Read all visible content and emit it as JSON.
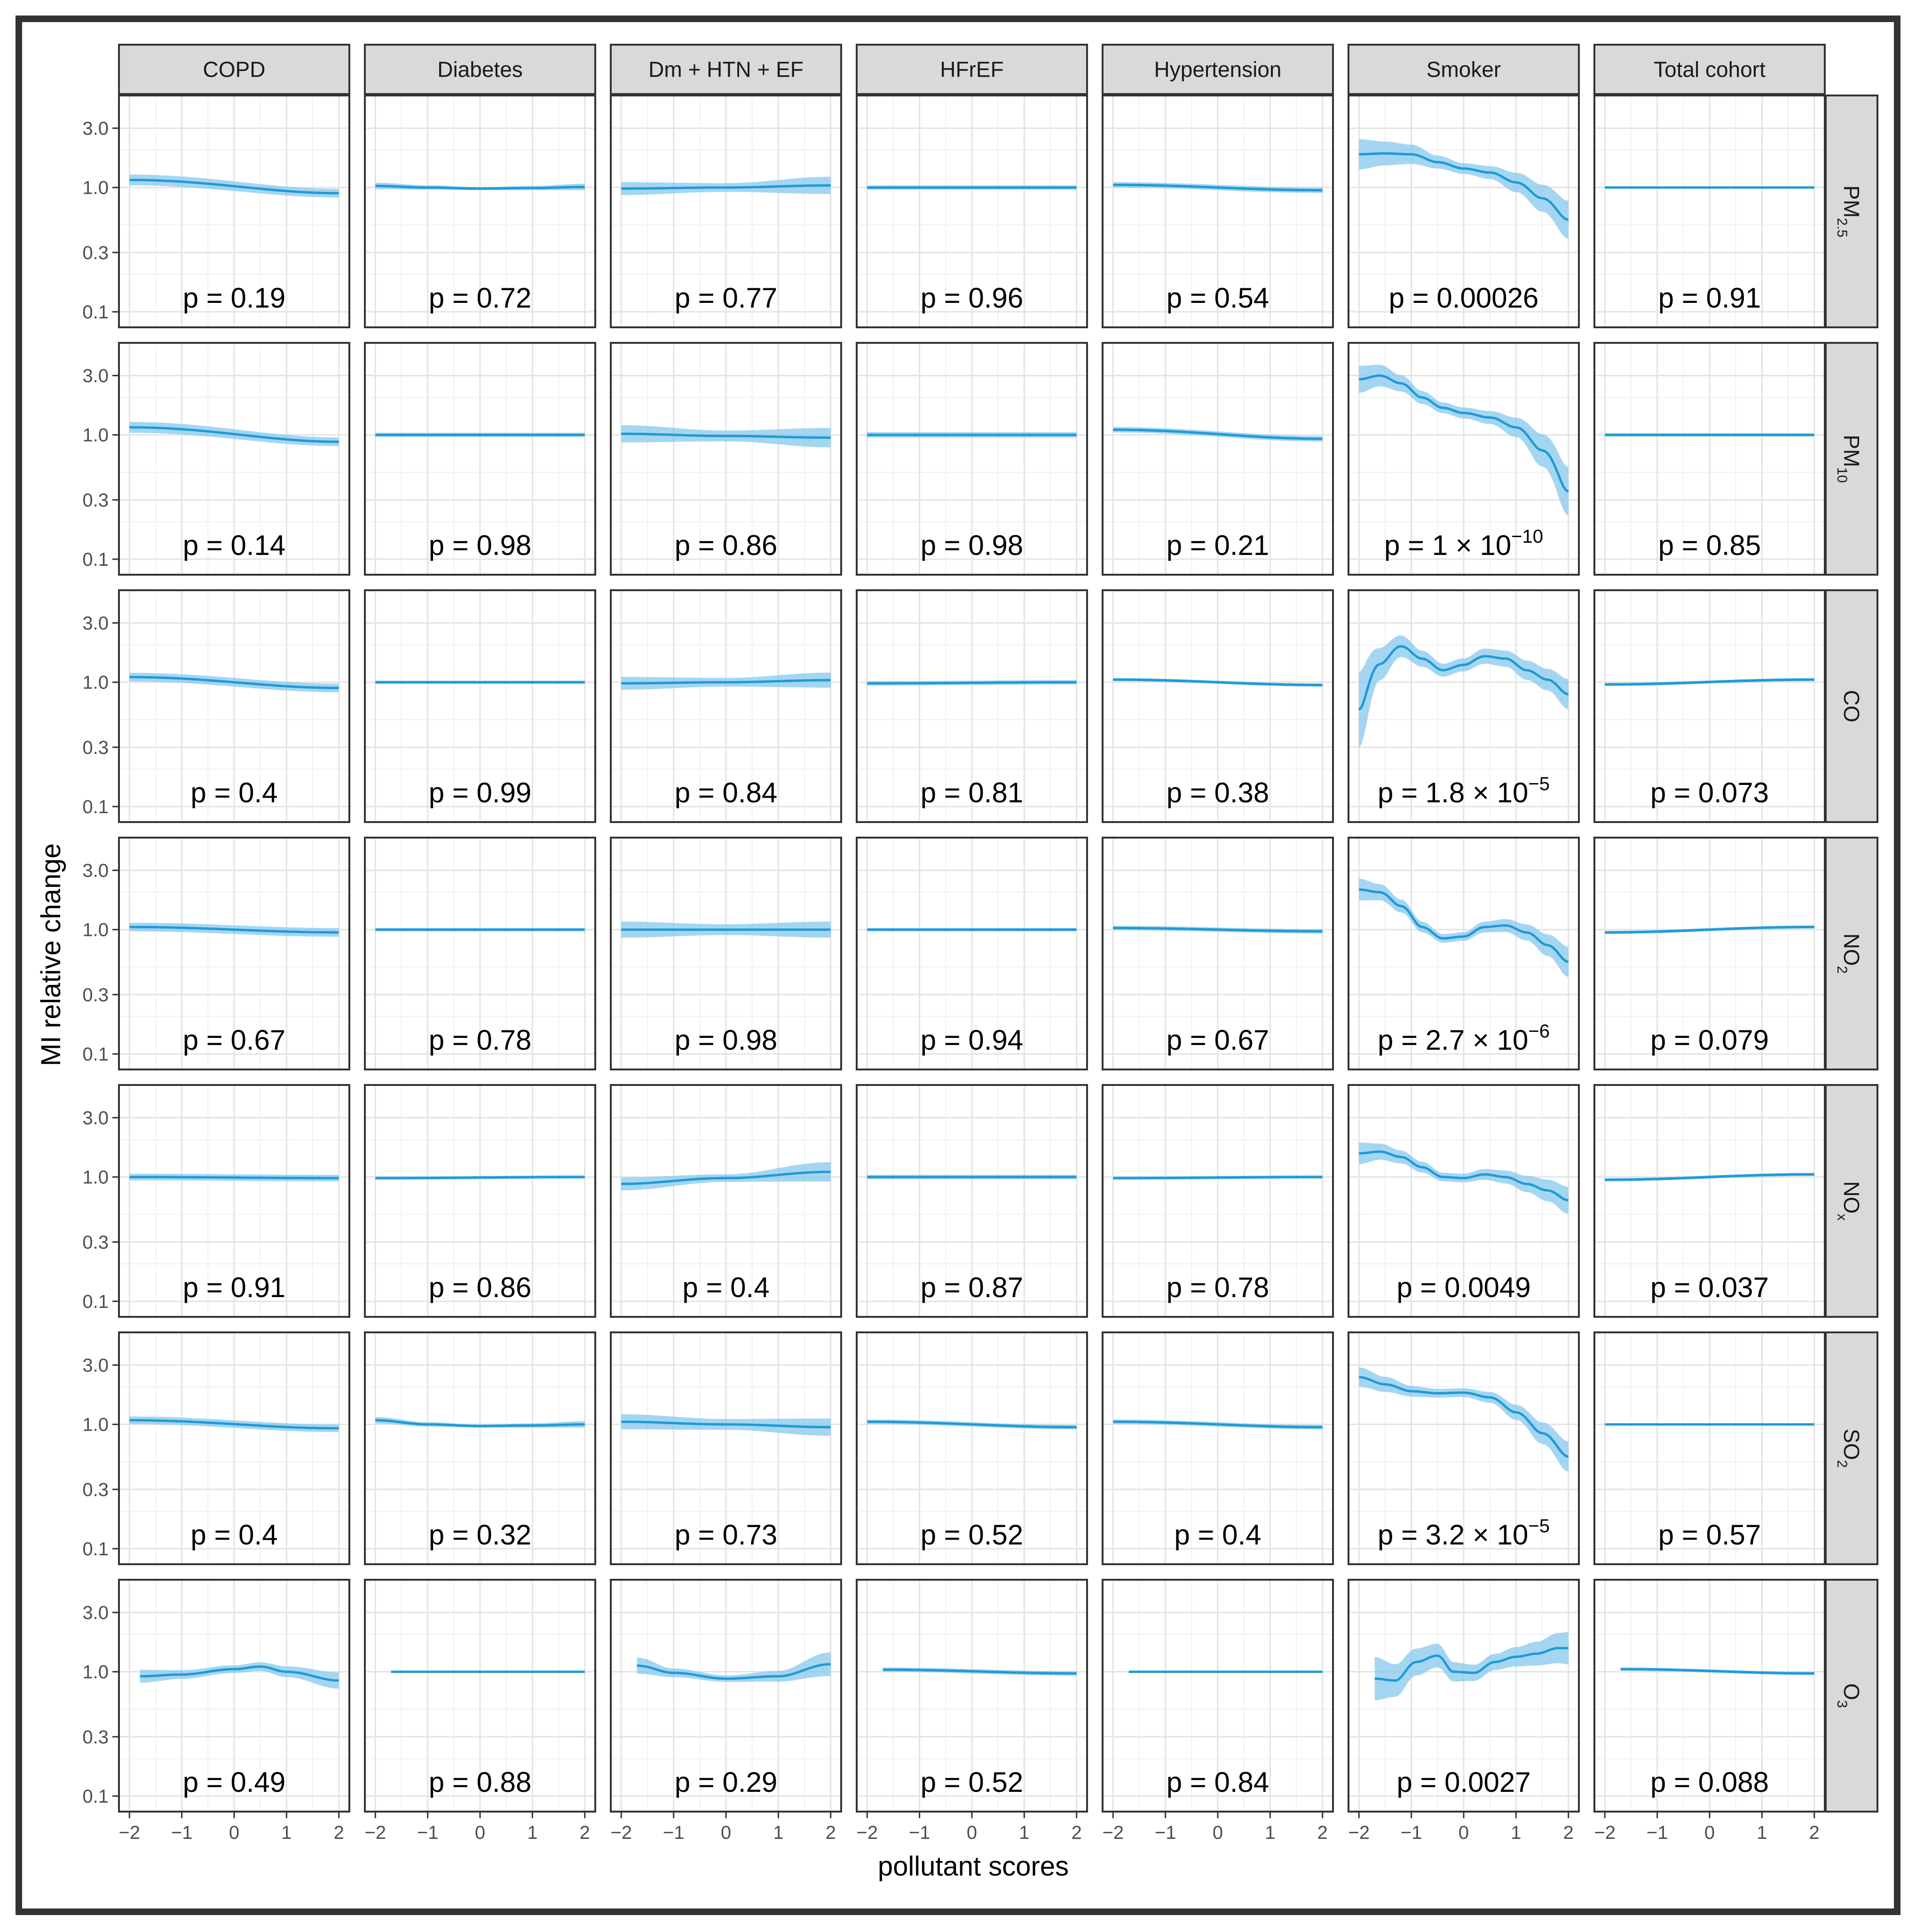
{
  "chart_data": {
    "type": "line",
    "subtype": "faceted smooth curves with confidence bands",
    "xlabel": "pollutant scores",
    "ylabel": "MI relative change",
    "x_ticks": [
      -2,
      -1,
      0,
      1,
      2
    ],
    "x_tick_labels": [
      "−2",
      "−1",
      "0",
      "1",
      "2"
    ],
    "xlim": [
      -2.2,
      2.2
    ],
    "y_scale": "log",
    "y_ticks": [
      0.1,
      0.3,
      1.0,
      3.0
    ],
    "y_tick_labels": [
      "0.1",
      "0.3",
      "1.0",
      "3.0"
    ],
    "ylim": [
      0.075,
      5.5
    ],
    "grid": true,
    "line_color": "#1f9ad6",
    "band_color": "#86c8ee",
    "strip_color": "#d9d9d9",
    "columns": [
      "COPD",
      "Diabetes",
      "Dm + HTN + EF",
      "HFrEF",
      "Hypertension",
      "Smoker",
      "Total cohort"
    ],
    "rows": [
      {
        "base": "PM",
        "sub": "2.5"
      },
      {
        "base": "PM",
        "sub": "10"
      },
      {
        "base": "CO",
        "sub": ""
      },
      {
        "base": "NO",
        "sub": "2"
      },
      {
        "base": "NO",
        "sub": "x"
      },
      {
        "base": "SO",
        "sub": "2"
      },
      {
        "base": "O",
        "sub": "3"
      }
    ],
    "p_values": [
      [
        "p = 0.19",
        "p = 0.72",
        "p = 0.77",
        "p = 0.96",
        "p = 0.54",
        "p = 0.00026",
        "p = 0.91"
      ],
      [
        "p = 0.14",
        "p = 0.98",
        "p = 0.86",
        "p = 0.98",
        "p = 0.21",
        {
          "m": "p = 1 × 10",
          "e": "−10"
        },
        "p = 0.85"
      ],
      [
        "p = 0.4",
        "p = 0.99",
        "p = 0.84",
        "p = 0.81",
        "p = 0.38",
        {
          "m": "p = 1.8 × 10",
          "e": "−5"
        },
        "p = 0.073"
      ],
      [
        "p = 0.67",
        "p = 0.78",
        "p = 0.98",
        "p = 0.94",
        "p = 0.67",
        {
          "m": "p = 2.7 × 10",
          "e": "−6"
        },
        "p = 0.079"
      ],
      [
        "p = 0.91",
        "p = 0.86",
        "p = 0.4",
        "p = 0.87",
        "p = 0.78",
        "p = 0.0049",
        "p = 0.037"
      ],
      [
        "p = 0.4",
        "p = 0.32",
        "p = 0.73",
        "p = 0.52",
        "p = 0.4",
        {
          "m": "p = 3.2 × 10",
          "e": "−5"
        },
        "p = 0.57"
      ],
      [
        "p = 0.49",
        "p = 0.88",
        "p = 0.29",
        "p = 0.52",
        "p = 0.84",
        "p = 0.0027",
        "p = 0.088"
      ]
    ],
    "series": [
      [
        {
          "x": [
            -2,
            2
          ],
          "y": [
            1.15,
            0.9
          ],
          "band": [
            0.1,
            0.08
          ]
        },
        {
          "x": [
            -2,
            -1,
            0,
            1,
            2
          ],
          "y": [
            1.03,
            1.0,
            0.98,
            0.99,
            1.01
          ],
          "band": [
            0.06,
            0.04,
            0.03,
            0.04,
            0.06
          ]
        },
        {
          "x": [
            -2,
            0,
            2
          ],
          "y": [
            0.98,
            1.0,
            1.04
          ],
          "band": [
            0.12,
            0.08,
            0.16
          ]
        },
        {
          "x": [
            -2,
            2
          ],
          "y": [
            1.0,
            1.0
          ],
          "band": [
            0.04,
            0.04
          ]
        },
        {
          "x": [
            -2,
            2
          ],
          "y": [
            1.05,
            0.95
          ],
          "band": [
            0.05,
            0.05
          ]
        },
        {
          "x": [
            -2,
            -1.5,
            -1,
            -0.5,
            0,
            0.5,
            1,
            1.5,
            2
          ],
          "y": [
            1.85,
            1.88,
            1.85,
            1.6,
            1.42,
            1.32,
            1.1,
            0.82,
            0.55
          ],
          "band": [
            0.28,
            0.22,
            0.18,
            0.12,
            0.1,
            0.12,
            0.18,
            0.25,
            0.35
          ]
        },
        {
          "x": [
            -2,
            2
          ],
          "y": [
            1.0,
            1.0
          ],
          "band": [
            0.02,
            0.02
          ]
        }
      ],
      [
        {
          "x": [
            -2,
            2
          ],
          "y": [
            1.15,
            0.88
          ],
          "band": [
            0.1,
            0.08
          ]
        },
        {
          "x": [
            -2,
            2
          ],
          "y": [
            1.0,
            1.0
          ],
          "band": [
            0.04,
            0.04
          ]
        },
        {
          "x": [
            -2,
            0,
            2
          ],
          "y": [
            1.02,
            0.98,
            0.95
          ],
          "band": [
            0.16,
            0.1,
            0.18
          ]
        },
        {
          "x": [
            -2,
            2
          ],
          "y": [
            1.0,
            1.0
          ],
          "band": [
            0.05,
            0.05
          ]
        },
        {
          "x": [
            -2,
            2
          ],
          "y": [
            1.1,
            0.93
          ],
          "band": [
            0.05,
            0.05
          ]
        },
        {
          "x": [
            -2,
            -1.6,
            -1.2,
            -0.8,
            -0.4,
            0,
            0.5,
            1,
            1.5,
            2
          ],
          "y": [
            2.8,
            3.0,
            2.6,
            2.0,
            1.65,
            1.5,
            1.38,
            1.15,
            0.75,
            0.35
          ],
          "band": [
            0.25,
            0.2,
            0.15,
            0.12,
            0.1,
            0.1,
            0.12,
            0.18,
            0.3,
            0.45
          ]
        },
        {
          "x": [
            -2,
            2
          ],
          "y": [
            1.0,
            1.0
          ],
          "band": [
            0.03,
            0.03
          ]
        }
      ],
      [
        {
          "x": [
            -2,
            2
          ],
          "y": [
            1.1,
            0.9
          ],
          "band": [
            0.08,
            0.08
          ]
        },
        {
          "x": [
            -2,
            2
          ],
          "y": [
            1.0,
            1.0
          ],
          "band": [
            0.03,
            0.03
          ]
        },
        {
          "x": [
            -2,
            0,
            2
          ],
          "y": [
            0.98,
            1.0,
            1.04
          ],
          "band": [
            0.12,
            0.08,
            0.14
          ]
        },
        {
          "x": [
            -2,
            2
          ],
          "y": [
            0.98,
            1.0
          ],
          "band": [
            0.04,
            0.04
          ]
        },
        {
          "x": [
            -2,
            2
          ],
          "y": [
            1.05,
            0.95
          ],
          "band": [
            0.03,
            0.03
          ]
        },
        {
          "x": [
            -2,
            -1.6,
            -1.2,
            -0.8,
            -0.4,
            0,
            0.4,
            0.8,
            1.2,
            1.6,
            2
          ],
          "y": [
            0.6,
            1.4,
            1.95,
            1.55,
            1.25,
            1.38,
            1.62,
            1.55,
            1.25,
            1.05,
            0.8
          ],
          "band": [
            0.7,
            0.3,
            0.2,
            0.15,
            0.12,
            0.12,
            0.14,
            0.15,
            0.18,
            0.2,
            0.28
          ]
        },
        {
          "x": [
            -2,
            2
          ],
          "y": [
            0.96,
            1.05
          ],
          "band": [
            0.03,
            0.03
          ]
        }
      ],
      [
        {
          "x": [
            -2,
            2
          ],
          "y": [
            1.05,
            0.95
          ],
          "band": [
            0.08,
            0.08
          ]
        },
        {
          "x": [
            -2,
            2
          ],
          "y": [
            1.0,
            1.0
          ],
          "band": [
            0.03,
            0.03
          ]
        },
        {
          "x": [
            -2,
            0,
            2
          ],
          "y": [
            1.0,
            1.0,
            1.0
          ],
          "band": [
            0.15,
            0.1,
            0.15
          ]
        },
        {
          "x": [
            -2,
            2
          ],
          "y": [
            1.0,
            1.0
          ],
          "band": [
            0.03,
            0.03
          ]
        },
        {
          "x": [
            -2,
            2
          ],
          "y": [
            1.03,
            0.97
          ],
          "band": [
            0.04,
            0.04
          ]
        },
        {
          "x": [
            -2,
            -1.6,
            -1.2,
            -0.8,
            -0.4,
            0,
            0.4,
            0.8,
            1.2,
            1.6,
            2
          ],
          "y": [
            2.1,
            2.0,
            1.55,
            1.05,
            0.85,
            0.88,
            1.05,
            1.08,
            0.95,
            0.75,
            0.55
          ],
          "band": [
            0.2,
            0.15,
            0.12,
            0.1,
            0.08,
            0.08,
            0.1,
            0.12,
            0.15,
            0.2,
            0.28
          ]
        },
        {
          "x": [
            -2,
            2
          ],
          "y": [
            0.95,
            1.05
          ],
          "band": [
            0.03,
            0.03
          ]
        }
      ],
      [
        {
          "x": [
            -2,
            2
          ],
          "y": [
            1.0,
            0.98
          ],
          "band": [
            0.06,
            0.06
          ]
        },
        {
          "x": [
            -2,
            2
          ],
          "y": [
            0.98,
            1.0
          ],
          "band": [
            0.03,
            0.03
          ]
        },
        {
          "x": [
            -2,
            0,
            2
          ],
          "y": [
            0.88,
            0.98,
            1.1
          ],
          "band": [
            0.12,
            0.07,
            0.18
          ]
        },
        {
          "x": [
            -2,
            2
          ],
          "y": [
            1.0,
            1.0
          ],
          "band": [
            0.04,
            0.04
          ]
        },
        {
          "x": [
            -2,
            2
          ],
          "y": [
            0.98,
            1.0
          ],
          "band": [
            0.03,
            0.03
          ]
        },
        {
          "x": [
            -2,
            -1.6,
            -1.2,
            -0.8,
            -0.4,
            0,
            0.4,
            0.8,
            1.2,
            1.6,
            2
          ],
          "y": [
            1.55,
            1.6,
            1.45,
            1.2,
            1.0,
            0.98,
            1.05,
            1.0,
            0.88,
            0.78,
            0.65
          ],
          "band": [
            0.2,
            0.15,
            0.12,
            0.1,
            0.08,
            0.08,
            0.1,
            0.12,
            0.15,
            0.2,
            0.25
          ]
        },
        {
          "x": [
            -2,
            2
          ],
          "y": [
            0.95,
            1.05
          ],
          "band": [
            0.03,
            0.03
          ]
        }
      ],
      [
        {
          "x": [
            -2,
            2
          ],
          "y": [
            1.08,
            0.93
          ],
          "band": [
            0.07,
            0.07
          ]
        },
        {
          "x": [
            -2,
            -1,
            0,
            1,
            2
          ],
          "y": [
            1.08,
            1.0,
            0.97,
            0.98,
            1.0
          ],
          "band": [
            0.06,
            0.04,
            0.03,
            0.04,
            0.06
          ]
        },
        {
          "x": [
            -2,
            0,
            2
          ],
          "y": [
            1.05,
            1.0,
            0.95
          ],
          "band": [
            0.14,
            0.1,
            0.16
          ]
        },
        {
          "x": [
            -2,
            2
          ],
          "y": [
            1.05,
            0.95
          ],
          "band": [
            0.04,
            0.04
          ]
        },
        {
          "x": [
            -2,
            2
          ],
          "y": [
            1.05,
            0.95
          ],
          "band": [
            0.04,
            0.04
          ]
        },
        {
          "x": [
            -2,
            -1.5,
            -1,
            -0.5,
            0,
            0.5,
            1,
            1.5,
            2
          ],
          "y": [
            2.4,
            2.1,
            1.85,
            1.78,
            1.8,
            1.65,
            1.25,
            0.85,
            0.55
          ],
          "band": [
            0.18,
            0.14,
            0.1,
            0.08,
            0.08,
            0.1,
            0.14,
            0.2,
            0.28
          ]
        },
        {
          "x": [
            -2,
            2
          ],
          "y": [
            1.0,
            1.0
          ],
          "band": [
            0.02,
            0.02
          ]
        }
      ],
      [
        {
          "x": [
            -1.8,
            -1,
            0,
            0.5,
            1,
            2
          ],
          "y": [
            0.92,
            0.95,
            1.05,
            1.1,
            1.0,
            0.85
          ],
          "band": [
            0.12,
            0.08,
            0.07,
            0.08,
            0.1,
            0.15
          ]
        },
        {
          "x": [
            -1.7,
            2
          ],
          "y": [
            1.0,
            1.0
          ],
          "band": [
            0.02,
            0.02
          ]
        },
        {
          "x": [
            -1.7,
            -1,
            0,
            1,
            2
          ],
          "y": [
            1.12,
            0.98,
            0.88,
            0.92,
            1.15
          ],
          "band": [
            0.15,
            0.08,
            0.06,
            0.1,
            0.22
          ]
        },
        {
          "x": [
            -1.7,
            2
          ],
          "y": [
            1.04,
            0.97
          ],
          "band": [
            0.04,
            0.04
          ]
        },
        {
          "x": [
            -1.7,
            2
          ],
          "y": [
            1.0,
            1.0
          ],
          "band": [
            0.02,
            0.02
          ]
        },
        {
          "x": [
            -1.7,
            -1.3,
            -0.9,
            -0.5,
            -0.2,
            0.2,
            0.6,
            1,
            1.4,
            1.8,
            2
          ],
          "y": [
            0.88,
            0.85,
            1.2,
            1.35,
            1.0,
            0.98,
            1.2,
            1.32,
            1.4,
            1.55,
            1.55
          ],
          "band": [
            0.4,
            0.3,
            0.25,
            0.22,
            0.18,
            0.15,
            0.15,
            0.18,
            0.22,
            0.28,
            0.3
          ]
        },
        {
          "x": [
            -1.7,
            2
          ],
          "y": [
            1.05,
            0.97
          ],
          "band": [
            0.03,
            0.03
          ]
        }
      ]
    ]
  }
}
